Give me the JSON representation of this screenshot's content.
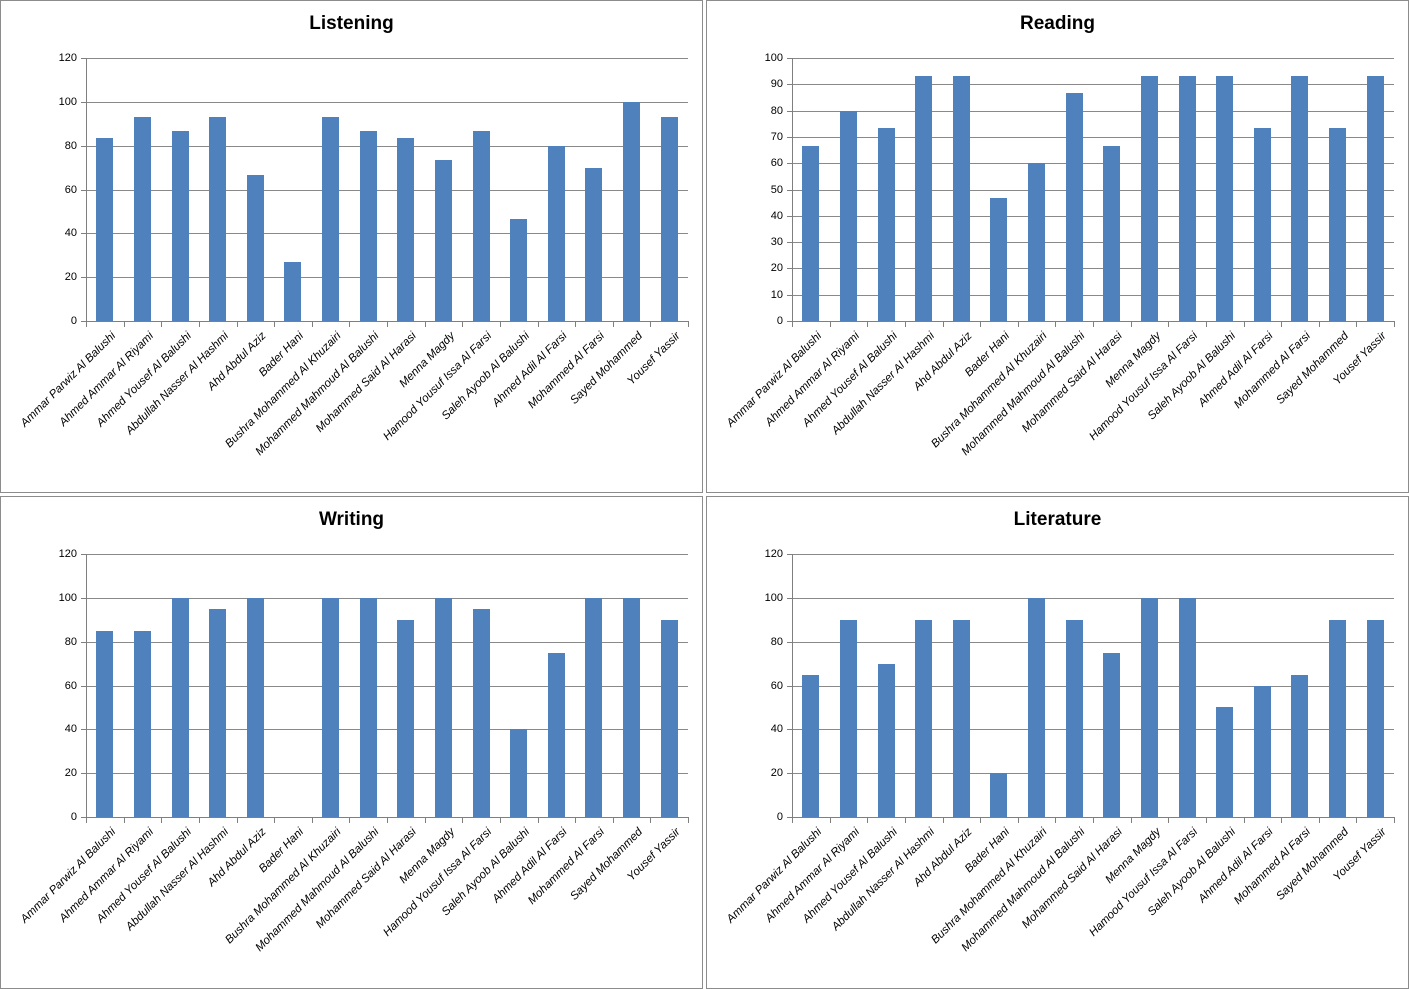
{
  "colors": {
    "bar": "#4f81bd",
    "grid": "#898989",
    "axis": "#7f7f7f",
    "panel_border": "#8c8c8c",
    "text": "#000000",
    "background": "#ffffff"
  },
  "categories": [
    "Ammar Parwiz Al Balushi",
    "Ahmed Ammar Al Riyami",
    "Ahmed Yousef Al Balushi",
    "Abdullah Nasser Al Hashmi",
    "Ahd Abdul Aziz",
    "Bader Hani",
    "Bushra Mohammed Al Khuzairi",
    "Mohammed Mahmoud Al Balushi",
    "Mohammed Said Al Harasi",
    "Menna Magdy",
    "Hamood Yousuf Issa Al Farsi",
    "Saleh Ayoob Al Balushi",
    "Ahmed Adil Al Farsi",
    "Mohammed Al Farsi",
    "Sayed Mohammed",
    "Yousef Yassir"
  ],
  "chart_data": [
    {
      "type": "bar",
      "title": "Listening",
      "categories": [
        "Ammar Parwiz Al Balushi",
        "Ahmed Ammar Al Riyami",
        "Ahmed Yousef Al Balushi",
        "Abdullah Nasser Al Hashmi",
        "Ahd Abdul Aziz",
        "Bader Hani",
        "Bushra Mohammed Al Khuzairi",
        "Mohammed Mahmoud Al Balushi",
        "Mohammed Said Al Harasi",
        "Menna Magdy",
        "Hamood Yousuf Issa Al Farsi",
        "Saleh Ayoob Al Balushi",
        "Ahmed Adil Al Farsi",
        "Mohammed Al Farsi",
        "Sayed Mohammed",
        "Yousef Yassir"
      ],
      "values": [
        83.3,
        93.3,
        86.7,
        93.3,
        66.7,
        26.7,
        93.3,
        86.7,
        83.3,
        73.3,
        86.7,
        46.7,
        80,
        70,
        100,
        93.3
      ],
      "xlabel": "",
      "ylabel": "",
      "ylim": [
        0,
        120
      ],
      "ytick_step": 20,
      "grid": true,
      "legend_position": "none"
    },
    {
      "type": "bar",
      "title": "Reading",
      "categories": [
        "Ammar Parwiz Al Balushi",
        "Ahmed Ammar Al Riyami",
        "Ahmed Yousef Al Balushi",
        "Abdullah Nasser Al Hashmi",
        "Ahd Abdul Aziz",
        "Bader Hani",
        "Bushra Mohammed Al Khuzairi",
        "Mohammed Mahmoud Al Balushi",
        "Mohammed Said Al Harasi",
        "Menna Magdy",
        "Hamood Yousuf Issa Al Farsi",
        "Saleh Ayoob Al Balushi",
        "Ahmed Adil Al Farsi",
        "Mohammed Al Farsi",
        "Sayed Mohammed",
        "Yousef Yassir"
      ],
      "values": [
        66.7,
        80,
        73.3,
        93.3,
        93.3,
        46.7,
        60,
        86.7,
        66.7,
        93.3,
        93.3,
        93.3,
        73.3,
        93.3,
        73.3,
        93.3
      ],
      "xlabel": "",
      "ylabel": "",
      "ylim": [
        0,
        100
      ],
      "ytick_step": 10,
      "grid": true,
      "legend_position": "none"
    },
    {
      "type": "bar",
      "title": "Writing",
      "categories": [
        "Ammar Parwiz Al Balushi",
        "Ahmed Ammar Al Riyami",
        "Ahmed Yousef Al Balushi",
        "Abdullah Nasser Al Hashmi",
        "Ahd Abdul Aziz",
        "Bader Hani",
        "Bushra Mohammed Al Khuzairi",
        "Mohammed Mahmoud Al Balushi",
        "Mohammed Said Al Harasi",
        "Menna Magdy",
        "Hamood Yousuf Issa Al Farsi",
        "Saleh Ayoob Al Balushi",
        "Ahmed Adil Al Farsi",
        "Mohammed Al Farsi",
        "Sayed Mohammed",
        "Yousef Yassir"
      ],
      "values": [
        85,
        85,
        100,
        95,
        100,
        0,
        100,
        100,
        90,
        100,
        95,
        40,
        75,
        100,
        100,
        90
      ],
      "xlabel": "",
      "ylabel": "",
      "ylim": [
        0,
        120
      ],
      "ytick_step": 20,
      "grid": true,
      "legend_position": "none"
    },
    {
      "type": "bar",
      "title": "Literature",
      "categories": [
        "Ammar Parwiz Al Balushi",
        "Ahmed Ammar Al Riyami",
        "Ahmed Yousef Al Balushi",
        "Abdullah Nasser Al Hashmi",
        "Ahd Abdul Aziz",
        "Bader Hani",
        "Bushra Mohammed Al Khuzairi",
        "Mohammed Mahmoud Al Balushi",
        "Mohammed Said Al Harasi",
        "Menna Magdy",
        "Hamood Yousuf Issa Al Farsi",
        "Saleh Ayoob Al Balushi",
        "Ahmed Adil Al Farsi",
        "Mohammed Al Farsi",
        "Sayed Mohammed",
        "Yousef Yassir"
      ],
      "values": [
        65,
        90,
        70,
        90,
        90,
        20,
        100,
        90,
        75,
        100,
        100,
        50,
        60,
        65,
        90,
        90
      ],
      "xlabel": "",
      "ylabel": "",
      "ylim": [
        0,
        120
      ],
      "ytick_step": 20,
      "grid": true,
      "legend_position": "none"
    }
  ]
}
